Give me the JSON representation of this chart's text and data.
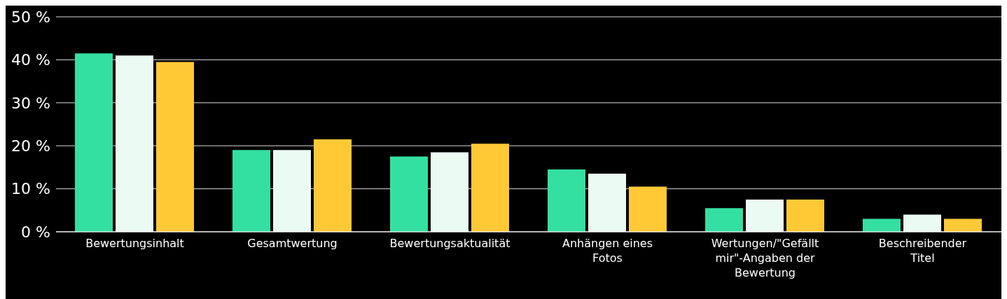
{
  "chart_data": {
    "type": "bar",
    "categories": [
      "Bewertungsinhalt",
      "Gesamtwertung",
      "Bewertungsaktualität",
      "Anhängen eines Fotos",
      "Wertungen/\"Gefällt mir\"-Angaben der Bewertung",
      "Beschreibender Titel"
    ],
    "series": [
      {
        "color": "#34e0a1",
        "values": [
          41.5,
          19,
          17.5,
          14.5,
          5.5,
          3
        ]
      },
      {
        "color": "#ebfaf3",
        "values": [
          41,
          19,
          18.5,
          13.5,
          7.5,
          4
        ]
      },
      {
        "color": "#ffc936",
        "values": [
          39.5,
          21.5,
          20.5,
          10.5,
          7.5,
          3
        ]
      }
    ],
    "ylim": [
      0,
      50
    ],
    "yticks": [
      {
        "value": 0,
        "label": "0 %"
      },
      {
        "value": 10,
        "label": "10 %"
      },
      {
        "value": 20,
        "label": "20 %"
      },
      {
        "value": 30,
        "label": "30 %"
      },
      {
        "value": 40,
        "label": "40 %"
      },
      {
        "value": 50,
        "label": "50 %"
      }
    ],
    "grid": "y",
    "legend": false
  }
}
